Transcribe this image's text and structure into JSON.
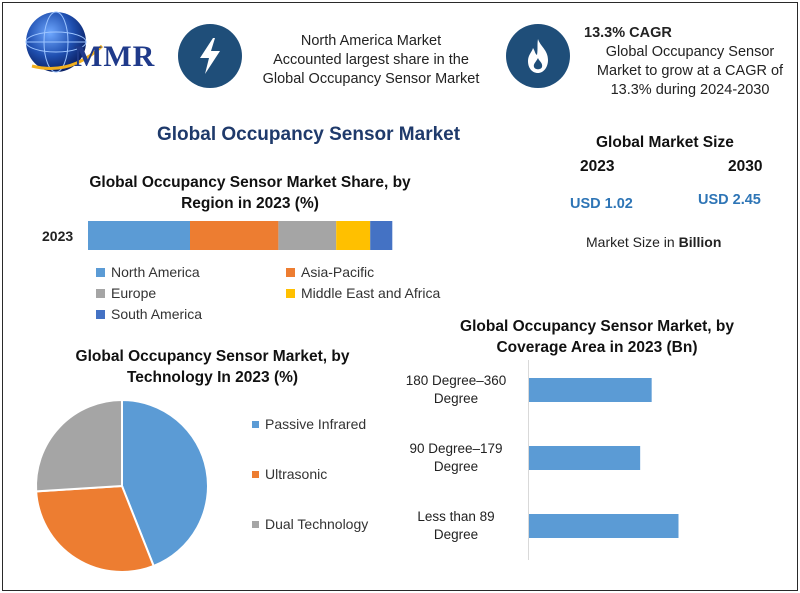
{
  "header": {
    "logo_text": "MMR",
    "info1_lines": [
      "North America Market",
      "Accounted largest share in the",
      "Global Occupancy Sensor Market"
    ],
    "cagr_title": "13.3% CAGR",
    "cagr_lines": [
      "Global Occupancy Sensor",
      "Market to grow at a CAGR of",
      "13.3% during 2024-2030"
    ]
  },
  "main_title": "Global Occupancy Sensor Market",
  "market_size": {
    "title": "Global Market Size",
    "year_a": "2023",
    "year_b": "2030",
    "value_a": "USD 1.02",
    "value_b": "USD 2.45",
    "unit_prefix": "Market Size in ",
    "unit_bold": "Billion"
  },
  "colors": {
    "blue": "#5b9bd5",
    "orange": "#ed7d31",
    "gray": "#a5a5a5",
    "yellow": "#ffc000",
    "darkblue": "#4472c4",
    "icon_bg": "#1f4e79"
  },
  "chart_data": [
    {
      "type": "bar",
      "orientation": "horizontal-stacked",
      "title": "Global Occupancy Sensor Market Share, by Region in 2023 (%)",
      "categories": [
        "2023"
      ],
      "series": [
        {
          "name": "North America",
          "values": [
            30
          ]
        },
        {
          "name": "Asia-Pacific",
          "values": [
            26
          ]
        },
        {
          "name": "Europe",
          "values": [
            17
          ]
        },
        {
          "name": "Middle East and Africa",
          "values": [
            10
          ]
        },
        {
          "name": "South America",
          "values": [
            6.5
          ]
        }
      ],
      "legend": "bottom"
    },
    {
      "type": "pie",
      "title": "Global Occupancy Sensor Market, by Technology In 2023 (%)",
      "labels": [
        "Passive Infrared",
        "Ultrasonic",
        "Dual Technology"
      ],
      "values": [
        44,
        30,
        26
      ],
      "legend": "right"
    },
    {
      "type": "bar",
      "orientation": "horizontal",
      "title": "Global Occupancy Sensor Market, by Coverage Area in 2023 (Bn)",
      "categories": [
        "180 Degree–360 Degree",
        "90 Degree–179 Degree",
        "Less than 89 Degree"
      ],
      "category_lines": [
        [
          "180 Degree–360",
          "Degree"
        ],
        [
          "90 Degree–179",
          "Degree"
        ],
        [
          "Less than 89",
          "Degree"
        ]
      ],
      "values": [
        0.32,
        0.29,
        0.39
      ],
      "xlim": [
        0,
        0.6
      ]
    }
  ]
}
